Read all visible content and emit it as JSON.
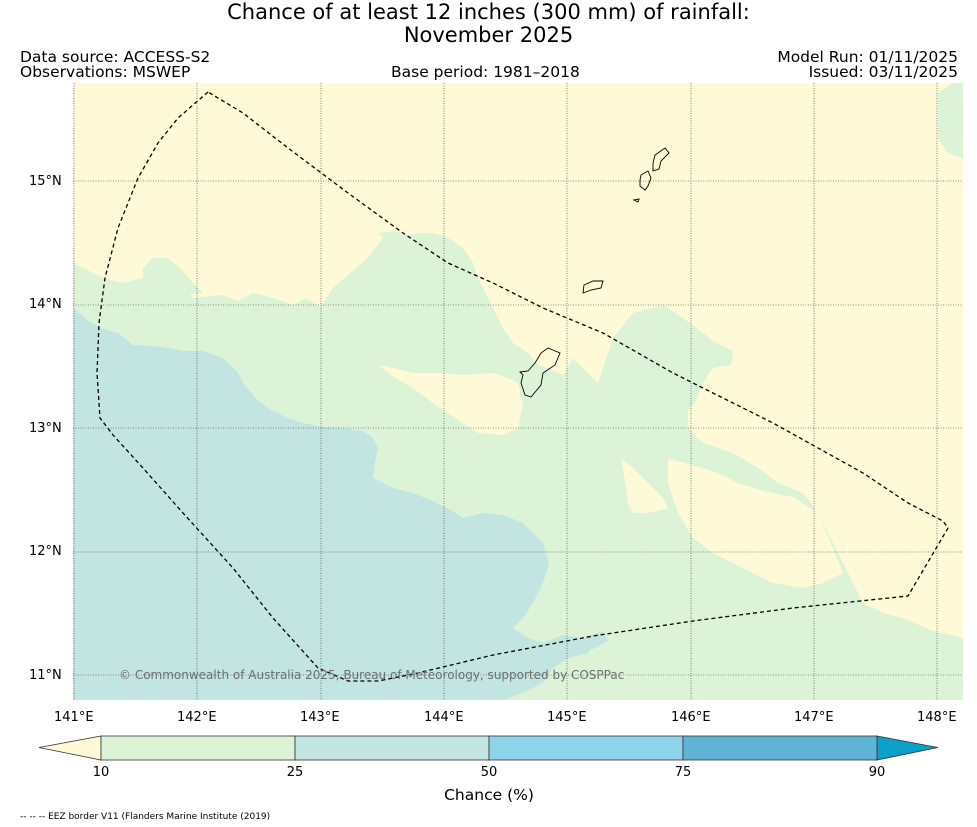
{
  "title": {
    "line1": "Chance of at least 12 inches (300  mm) of rainfall:",
    "line2": "November 2025"
  },
  "header": {
    "data_source": "Data source: ACCESS-S2",
    "observations": "Observations: MSWEP",
    "base_period": "Base period: 1981–2018",
    "model_run": "Model Run: 01/11/2025",
    "issued": "Issued: 03/11/2025"
  },
  "map": {
    "lon_range": [
      141.0,
      148.2
    ],
    "lat_range": [
      10.8,
      15.8
    ],
    "x_ticks": [
      "141°E",
      "142°E",
      "143°E",
      "144°E",
      "145°E",
      "146°E",
      "147°E",
      "148°E"
    ],
    "y_ticks": [
      "15°N",
      "14°N",
      "13°N",
      "12°N",
      "11°N"
    ],
    "copyright": "© Commonwealth of Australia 2025, Bureau of Meteorology, supported by COSPPac",
    "colors": {
      "below_10": "#fef9d6",
      "10_25": "#ddf3d8",
      "25_50": "#c2e5e2",
      "50_75": "#8fd3ea",
      "75_90": "#5fb4d6",
      "above_90": "#0aa0c8"
    }
  },
  "colorbar": {
    "ticks": [
      "10",
      "25",
      "50",
      "75",
      "90"
    ],
    "label": "Chance (%)"
  },
  "footnote": "-- -- -- EEZ border V11 (Flanders Marine Institute (2019)"
}
